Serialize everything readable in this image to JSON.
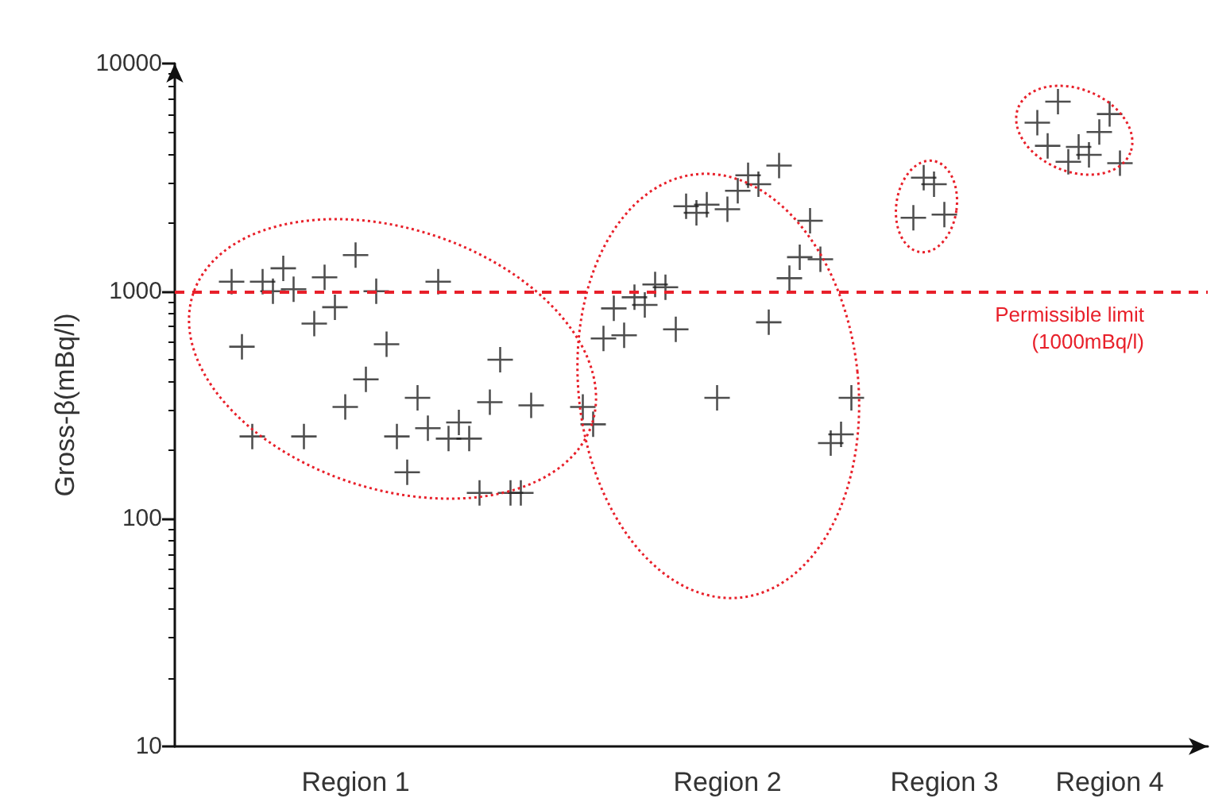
{
  "chart_data": {
    "type": "scatter",
    "ylabel": "Gross-β(mBq/l)",
    "log": "y",
    "marker": "cross",
    "categories": [
      null,
      null,
      null,
      null,
      null,
      null,
      null,
      null,
      null,
      null,
      null,
      null,
      null,
      null,
      null,
      null,
      null,
      "Region 1",
      null,
      null,
      null,
      null,
      null,
      null,
      null,
      null,
      null,
      null,
      null,
      null,
      null,
      null,
      null,
      null,
      null,
      null,
      null,
      null,
      null,
      null,
      null,
      null,
      null,
      null,
      null,
      null,
      null,
      null,
      null,
      null,
      null,
      null,
      null,
      "Region 2",
      null,
      null,
      null,
      null,
      null,
      null,
      null,
      null,
      null,
      null,
      null,
      null,
      null,
      null,
      null,
      null,
      null,
      null,
      null,
      null,
      "Region 3",
      null,
      null,
      null,
      null,
      null,
      null,
      null,
      null,
      null,
      null,
      null,
      null,
      null,
      null,
      null,
      "Region 4",
      null,
      null,
      null,
      null,
      null,
      null,
      null,
      null,
      null
    ],
    "ylim": [
      10,
      10000
    ],
    "yticks": [
      10,
      100,
      1000,
      10000
    ],
    "ref_lines": [
      {
        "axis": "y",
        "value": 1000,
        "label": "Permissible limit (1000mBq/l)",
        "color": "#e8202a",
        "line_style": "dashed"
      }
    ],
    "series": [
      {
        "color": "#222222",
        "values": [
          null,
          null,
          null,
          null,
          null,
          1100,
          570,
          230,
          1100,
          1000,
          1260,
          1020,
          230,
          720,
          1150,
          850,
          310,
          1440,
          410,
          1000,
          585,
          230,
          160,
          340,
          250,
          1100,
          225,
          265,
          225,
          130,
          325,
          500,
          130,
          130,
          315,
          null,
          null,
          null,
          null,
          310,
          260,
          620,
          840,
          640,
          940,
          870,
          1070,
          1040,
          680,
          2360,
          2210,
          2400,
          340,
          2290,
          2760,
          3230,
          2950,
          730,
          3560,
          1140,
          1410,
          2040,
          1380,
          215,
          235,
          340,
          null,
          null,
          null,
          null,
          null,
          2100,
          3150,
          2950,
          2170,
          null,
          null,
          null,
          null,
          null,
          null,
          null,
          null,
          5500,
          4350,
          6800,
          3700,
          4300,
          3970,
          5000,
          6000,
          3650,
          null,
          null,
          null,
          null,
          null,
          null,
          null,
          null
        ]
      }
    ]
  }
}
